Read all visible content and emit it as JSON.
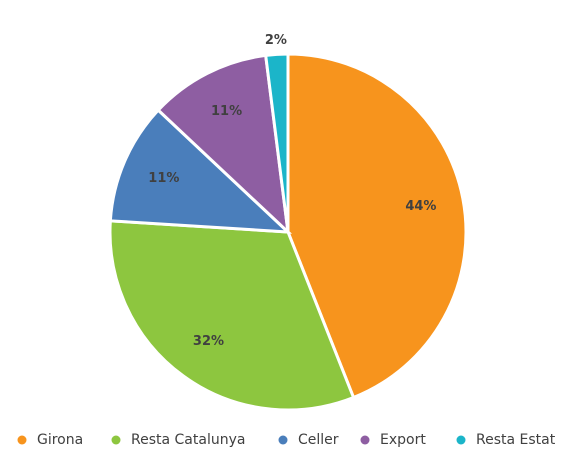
{
  "chart_data": {
    "type": "pie",
    "categories": [
      "Girona",
      "Resta Catalunya",
      "Celler",
      "Export",
      "Resta Estat"
    ],
    "values": [
      44,
      32,
      11,
      11,
      2
    ],
    "value_labels": [
      "44%",
      "32%",
      "11%",
      "11%",
      "2%"
    ],
    "colors": [
      "#f7941d",
      "#8dc63f",
      "#4a7ebb",
      "#8e5ea2",
      "#1bb5c9"
    ],
    "legend": "bottom"
  }
}
